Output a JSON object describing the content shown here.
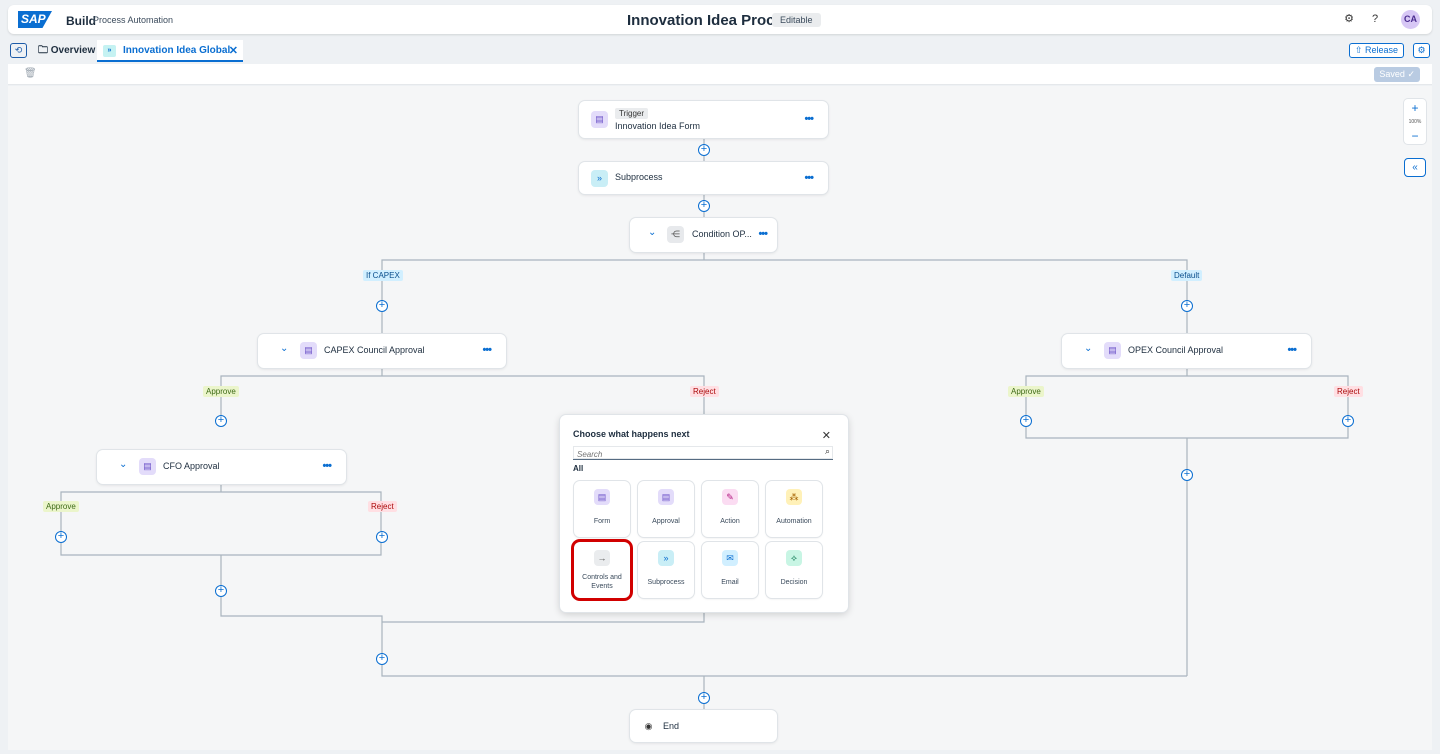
{
  "shell": {
    "logo": "SAP",
    "brand": "Build",
    "brand_sub": "Process Automation",
    "title": "Innovation Idea Process",
    "status": "Editable",
    "avatar": "CA"
  },
  "tabs": {
    "overview": "Overview",
    "active": "Innovation Idea Global P...",
    "release": "Release"
  },
  "toolbar": {
    "saved": "Saved"
  },
  "zoom": {
    "level": "100%"
  },
  "flow": {
    "trigger_tag": "Trigger",
    "trigger_label": "Innovation Idea Form",
    "subprocess_label": "Subprocess",
    "condition_label": "Condition OP...",
    "branch_capex": "If CAPEX",
    "branch_default": "Default",
    "capex_label": "CAPEX Council Approval",
    "opex_label": "OPEX Council Approval",
    "cfo_label": "CFO Approval",
    "approve": "Approve",
    "reject": "Reject",
    "end_label": "End"
  },
  "popover": {
    "title": "Choose what happens next",
    "search_placeholder": "Search",
    "all": "All",
    "tiles": [
      {
        "label": "Form",
        "icon": "form-icon"
      },
      {
        "label": "Approval",
        "icon": "approval-icon"
      },
      {
        "label": "Action",
        "icon": "action-icon"
      },
      {
        "label": "Automation",
        "icon": "automation-icon"
      },
      {
        "label": "Controls and Events",
        "icon": "arrow-right-icon",
        "selected": true
      },
      {
        "label": "Subprocess",
        "icon": "subprocess-icon"
      },
      {
        "label": "Email",
        "icon": "email-icon"
      },
      {
        "label": "Decision",
        "icon": "decision-icon"
      }
    ]
  },
  "colors": {
    "accent": "#0a6ed1",
    "highlight": "#d10000"
  }
}
